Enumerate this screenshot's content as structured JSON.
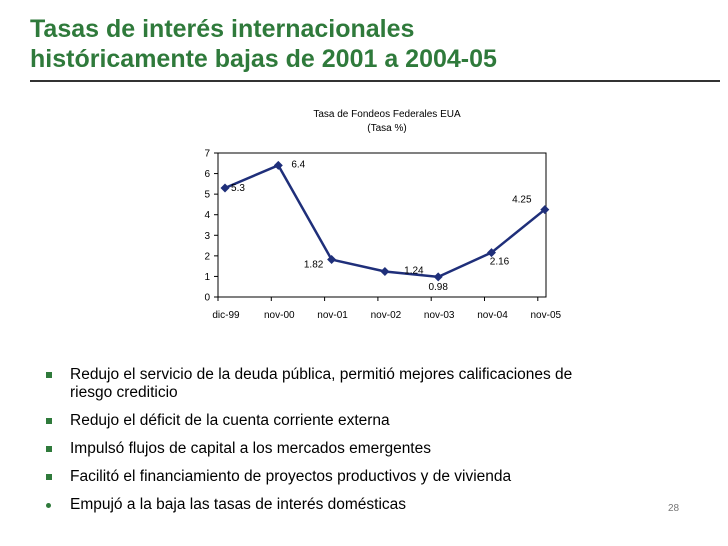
{
  "slide": {
    "title_line1": "Tasas de interés internacionales",
    "title_line2": "históricamente bajas de 2001 a 2004-05",
    "page_number": "28",
    "accent_color": "#2f7a3b",
    "bullets": [
      {
        "text": "Redujo el servicio de la deuda pública, permitió mejores calificaciones de",
        "text2": "riesgo crediticio",
        "marker": "square"
      },
      {
        "text": "Redujo el déficit de la cuenta corriente externa",
        "marker": "square"
      },
      {
        "text": "Impulsó flujos de capital a los mercados emergentes",
        "marker": "square"
      },
      {
        "text": "Facilitó el financiamiento de proyectos productivos y de vivienda",
        "marker": "square"
      },
      {
        "text": "Empujó a la baja las tasas de interés domésticas",
        "marker": "round"
      }
    ]
  },
  "chart_data": {
    "type": "line",
    "title": "Tasa de Fondeos Federales EUA",
    "subtitle": "(Tasa %)",
    "categories": [
      "dic-99",
      "nov-00",
      "nov-01",
      "nov-02",
      "nov-03",
      "nov-04",
      "nov-05"
    ],
    "series": [
      {
        "values": [
          5.3,
          6.4,
          1.82,
          1.24,
          0.98,
          2.16,
          4.25
        ],
        "labels": [
          "5.3",
          "6.4",
          "1.82",
          "1.24",
          "0.98",
          "2.16",
          "4.25"
        ],
        "color": "#1f2f7a"
      }
    ],
    "ylim": [
      0,
      7
    ],
    "yticks": [
      0,
      1,
      2,
      3,
      4,
      5,
      6,
      7
    ],
    "grid": false,
    "legend": "none"
  }
}
